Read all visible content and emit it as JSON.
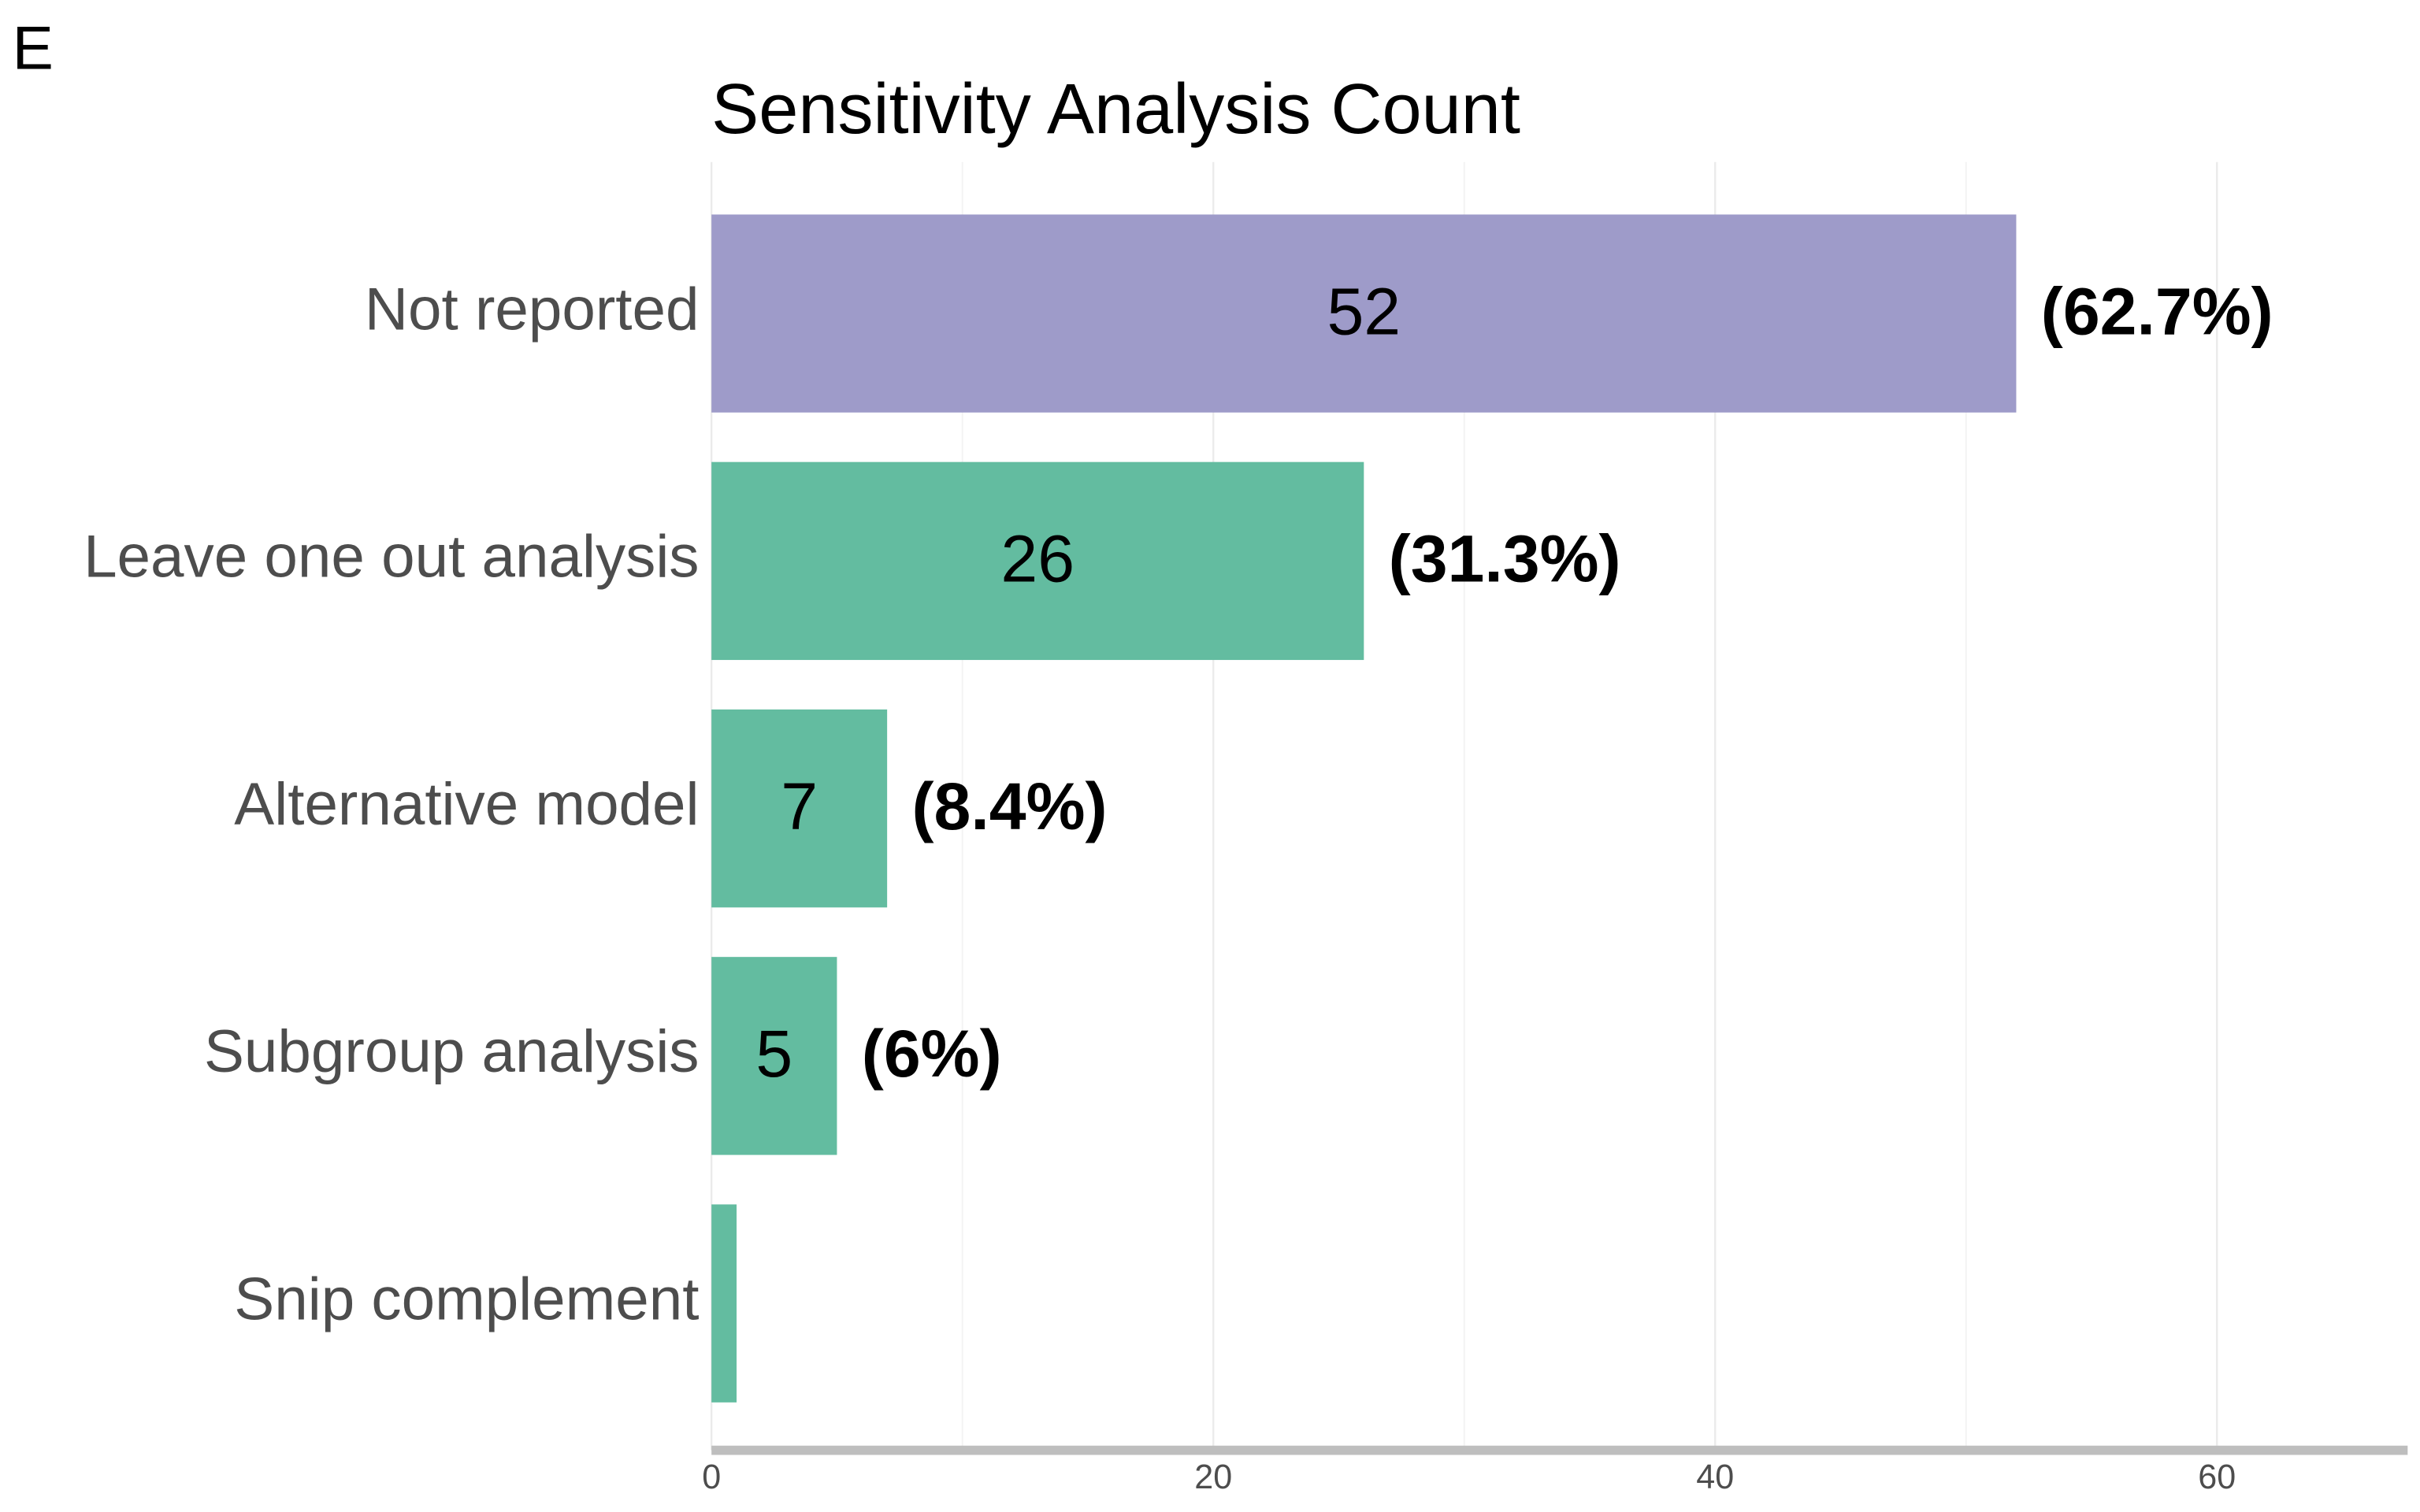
{
  "panel_label": "E",
  "chart_data": {
    "type": "bar",
    "orientation": "horizontal",
    "title": "Sensitivity Analysis Count",
    "categories": [
      "Not reported",
      "Leave one out analysis",
      "Alternative model",
      "Subgroup analysis",
      "Snip complement"
    ],
    "values": [
      52,
      26,
      7,
      5,
      1
    ],
    "value_labels": [
      "52",
      "26",
      "7",
      "5",
      null
    ],
    "annotations": [
      "(62.7%)",
      "(31.3%)",
      "(8.4%)",
      "(6%)",
      null
    ],
    "colors": [
      "#9e9bc9",
      "#63bca0",
      "#63bca0",
      "#63bca0",
      "#63bca0"
    ],
    "xlim": [
      0,
      67.6
    ],
    "xticks": [
      0,
      20,
      40,
      60
    ],
    "minor_grid": [
      10,
      30,
      50
    ],
    "grid": true
  }
}
